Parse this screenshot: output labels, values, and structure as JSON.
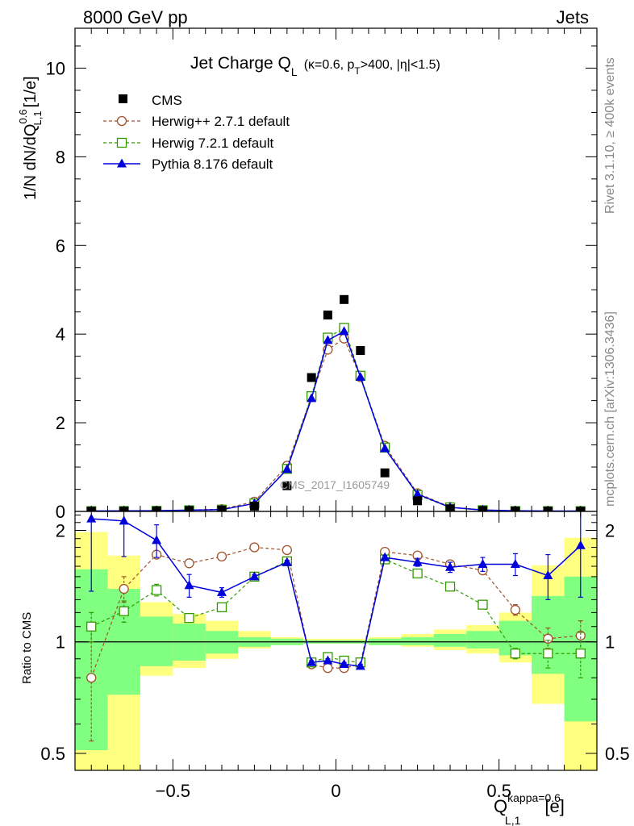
{
  "header": {
    "left": "8000 GeV pp",
    "right": "Jets"
  },
  "side_labels": {
    "rivet": "Rivet 3.1.10, ≥ 400k events",
    "mcplots": "mcplots.cern.ch [arXiv:1306.3436]"
  },
  "watermark": "CMS_2017_I1605749",
  "title": {
    "main": "Jet Charge Q",
    "main_sub": "L",
    "detail_a": "(κ=0.6, p",
    "detail_sub": "T",
    "detail_b": ">400, |η|<1.5)"
  },
  "ylabel_main": {
    "prefix": "1/N dN/dQ",
    "sup": "0.6",
    "sub": "L,1",
    "unit": "[1/e]"
  },
  "ylabel_ratio": "Ratio to CMS",
  "xlabel": {
    "q": "Q",
    "sup": "kappa=0.6",
    "sub": "L,1",
    "unit": "[e]"
  },
  "legend": [
    "CMS",
    "Herwig++ 2.7.1 default",
    "Herwig 7.2.1 default",
    "Pythia 8.176 default"
  ],
  "colors": {
    "cms": "#000000",
    "herwigpp": "#a0522d",
    "herwig7": "#339900",
    "pythia": "#0000dd",
    "band_inner": "#80ff80",
    "band_outer": "#ffff80"
  },
  "chart_data": [
    {
      "type": "scatter",
      "title": "Jet Charge Q_L (κ=0.6, p_T>400, |η|<1.5)",
      "xlim": [
        -0.8,
        0.8
      ],
      "ylim": [
        0,
        10.9
      ],
      "yticks": [
        0,
        2,
        4,
        6,
        8,
        10
      ],
      "x": [
        -0.75,
        -0.65,
        -0.55,
        -0.45,
        -0.35,
        -0.25,
        -0.15,
        -0.075,
        -0.025,
        0.025,
        0.075,
        0.15,
        0.25,
        0.35,
        0.45,
        0.55,
        0.65,
        0.75
      ],
      "series": [
        {
          "name": "CMS",
          "values": [
            0.005,
            0.006,
            0.009,
            0.02,
            0.03,
            0.12,
            0.58,
            3.02,
            4.43,
            4.78,
            3.63,
            0.87,
            0.24,
            0.06,
            0.02,
            0.009,
            0.006,
            0.005
          ]
        },
        {
          "name": "Herwig++ 2.7.1 default",
          "values": [
            0.004,
            0.008,
            0.015,
            0.03,
            0.05,
            0.22,
            1.03,
            2.6,
            3.65,
            3.9,
            3.03,
            1.48,
            0.41,
            0.1,
            0.03,
            0.012,
            0.006,
            0.005
          ]
        },
        {
          "name": "Herwig 7.2.1 default",
          "values": [
            0.005,
            0.008,
            0.013,
            0.025,
            0.04,
            0.18,
            0.96,
            2.6,
            3.92,
            4.14,
            3.06,
            1.44,
            0.37,
            0.09,
            0.027,
            0.008,
            0.006,
            0.005
          ]
        },
        {
          "name": "Pythia 8.176 default",
          "values": [
            0.011,
            0.013,
            0.017,
            0.03,
            0.04,
            0.18,
            0.95,
            2.55,
            3.86,
            4.06,
            3.03,
            1.42,
            0.39,
            0.09,
            0.032,
            0.015,
            0.009,
            0.009
          ]
        }
      ]
    },
    {
      "type": "line",
      "ylabel": "Ratio to CMS",
      "xlim": [
        -0.8,
        0.8
      ],
      "ylim": [
        0.45,
        2.25
      ],
      "log_y": true,
      "yticks": [
        0.5,
        1,
        2
      ],
      "xticks": [
        -0.5,
        0,
        0.5
      ],
      "bins": [
        [
          -0.8,
          -0.7
        ],
        [
          -0.7,
          -0.6
        ],
        [
          -0.6,
          -0.5
        ],
        [
          -0.5,
          -0.4
        ],
        [
          -0.4,
          -0.3
        ],
        [
          -0.3,
          -0.2
        ],
        [
          -0.2,
          -0.1
        ],
        [
          -0.1,
          -0.05
        ],
        [
          -0.05,
          0.0
        ],
        [
          0.0,
          0.05
        ],
        [
          0.05,
          0.1
        ],
        [
          0.1,
          0.2
        ],
        [
          0.2,
          0.3
        ],
        [
          0.3,
          0.4
        ],
        [
          0.4,
          0.5
        ],
        [
          0.5,
          0.6
        ],
        [
          0.6,
          0.7
        ],
        [
          0.7,
          0.8
        ]
      ],
      "band_inner": [
        [
          0.51,
          1.57
        ],
        [
          0.72,
          1.39
        ],
        [
          0.86,
          1.17
        ],
        [
          0.89,
          1.12
        ],
        [
          0.93,
          1.07
        ],
        [
          0.97,
          1.03
        ],
        [
          0.98,
          1.02
        ],
        [
          0.99,
          1.01
        ],
        [
          0.99,
          1.01
        ],
        [
          0.99,
          1.01
        ],
        [
          0.99,
          1.01
        ],
        [
          0.98,
          1.02
        ],
        [
          0.98,
          1.03
        ],
        [
          0.97,
          1.05
        ],
        [
          0.96,
          1.07
        ],
        [
          0.92,
          1.14
        ],
        [
          0.82,
          1.33
        ],
        [
          0.61,
          1.5
        ]
      ],
      "band_outer": [
        [
          0.33,
          1.98
        ],
        [
          0.42,
          1.71
        ],
        [
          0.81,
          1.28
        ],
        [
          0.85,
          1.19
        ],
        [
          0.9,
          1.14
        ],
        [
          0.96,
          1.07
        ],
        [
          0.98,
          1.03
        ],
        [
          0.99,
          1.02
        ],
        [
          0.99,
          1.02
        ],
        [
          0.99,
          1.02
        ],
        [
          0.99,
          1.02
        ],
        [
          0.98,
          1.03
        ],
        [
          0.97,
          1.05
        ],
        [
          0.95,
          1.08
        ],
        [
          0.93,
          1.11
        ],
        [
          0.88,
          1.2
        ],
        [
          0.68,
          1.61
        ],
        [
          0.38,
          1.91
        ]
      ],
      "series": [
        {
          "name": "Herwig++ 2.7.1 default",
          "values": [
            0.8,
            1.39,
            1.72,
            1.63,
            1.7,
            1.8,
            1.77,
            0.87,
            0.85,
            0.85,
            0.87,
            1.75,
            1.71,
            1.62,
            1.56,
            1.22,
            1.02,
            1.04
          ],
          "err": [
            [
              0.54,
              1.08
            ],
            [
              1.28,
              1.5
            ],
            [
              1.69,
              1.75
            ],
            [
              1.61,
              1.65
            ],
            [
              1.68,
              1.72
            ],
            [
              1.79,
              1.81
            ],
            [
              1.76,
              1.78
            ],
            [
              0.86,
              0.88
            ],
            [
              0.84,
              0.86
            ],
            [
              0.84,
              0.86
            ],
            [
              0.86,
              0.88
            ],
            [
              1.74,
              1.76
            ],
            [
              1.69,
              1.73
            ],
            [
              1.6,
              1.64
            ],
            [
              1.52,
              1.6
            ],
            [
              1.18,
              1.26
            ],
            [
              0.96,
              1.09
            ],
            [
              0.94,
              1.14
            ]
          ]
        },
        {
          "name": "Herwig 7.2.1 default",
          "values": [
            1.1,
            1.21,
            1.38,
            1.16,
            1.24,
            1.5,
            1.65,
            0.88,
            0.91,
            0.89,
            0.88,
            1.67,
            1.53,
            1.41,
            1.26,
            0.93,
            0.93,
            0.93
          ],
          "err": [
            [
              1.0,
              1.2
            ],
            [
              1.13,
              1.29
            ],
            [
              1.33,
              1.43
            ],
            [
              1.14,
              1.18
            ],
            [
              1.22,
              1.26
            ],
            [
              1.49,
              1.51
            ],
            [
              1.64,
              1.66
            ],
            [
              0.87,
              0.89
            ],
            [
              0.9,
              0.92
            ],
            [
              0.88,
              0.9
            ],
            [
              0.87,
              0.89
            ],
            [
              1.66,
              1.68
            ],
            [
              1.51,
              1.55
            ],
            [
              1.38,
              1.44
            ],
            [
              1.23,
              1.29
            ],
            [
              0.9,
              0.96
            ],
            [
              0.85,
              1.01
            ],
            [
              0.8,
              1.06
            ]
          ]
        },
        {
          "name": "Pythia 8.176 default",
          "values": [
            2.15,
            2.12,
            1.88,
            1.42,
            1.36,
            1.5,
            1.64,
            0.88,
            0.89,
            0.87,
            0.86,
            1.69,
            1.64,
            1.59,
            1.62,
            1.62,
            1.51,
            1.82
          ],
          "err": [
            [
              1.37,
              2.15
            ],
            [
              1.7,
              2.12
            ],
            [
              1.69,
              2.07
            ],
            [
              1.32,
              1.52
            ],
            [
              1.32,
              1.4
            ],
            [
              1.48,
              1.52
            ],
            [
              1.62,
              1.66
            ],
            [
              0.87,
              0.89
            ],
            [
              0.88,
              0.9
            ],
            [
              0.86,
              0.88
            ],
            [
              0.85,
              0.87
            ],
            [
              1.67,
              1.71
            ],
            [
              1.6,
              1.68
            ],
            [
              1.54,
              1.64
            ],
            [
              1.55,
              1.69
            ],
            [
              1.51,
              1.73
            ],
            [
              1.3,
              1.72
            ],
            [
              1.32,
              2.31
            ]
          ]
        }
      ]
    }
  ]
}
